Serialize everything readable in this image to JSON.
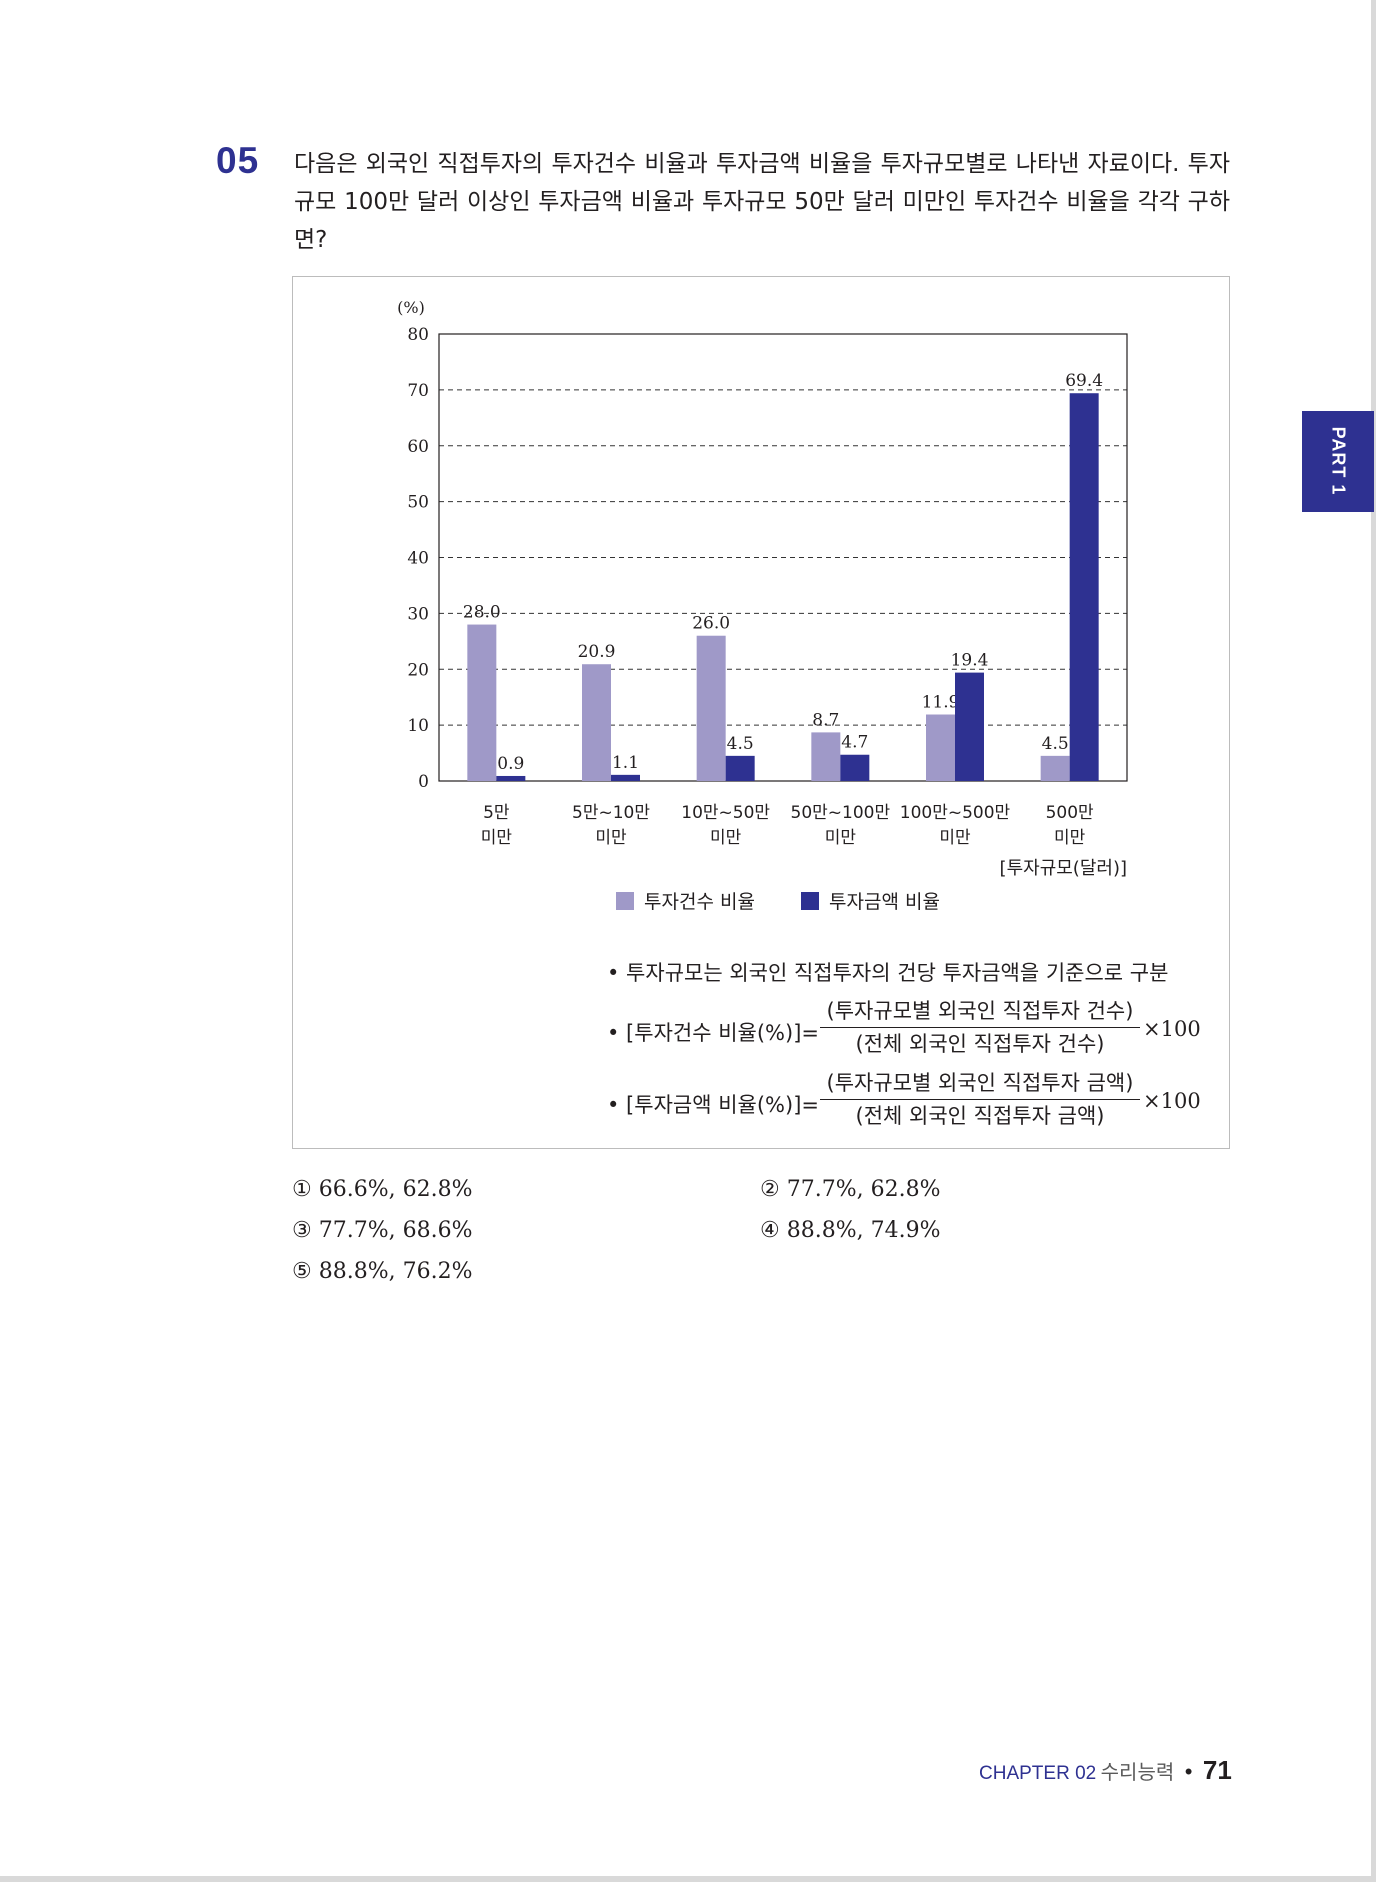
{
  "question": {
    "number": "05",
    "text": "다음은 외국인 직접투자의 투자건수 비율과 투자금액 비율을 투자규모별로 나타낸 자료이다. 투자규모 100만 달러 이상인 투자금액 비율과 투자규모 50만 달러 미만인 투자건수 비율을 각각 구하면?"
  },
  "side_tab": {
    "label": "PART 1"
  },
  "chart_data": {
    "type": "bar",
    "unit_label": "(%)",
    "ylim": [
      0,
      80
    ],
    "yticks": [
      "0",
      "10",
      "20",
      "30",
      "40",
      "50",
      "60",
      "70",
      "80"
    ],
    "grid": "dashed horizontal",
    "categories": [
      [
        "5만",
        "미만"
      ],
      [
        "5만~10만",
        "미만"
      ],
      [
        "10만~50만",
        "미만"
      ],
      [
        "50만~100만",
        "미만"
      ],
      [
        "100만~500만",
        "미만"
      ],
      [
        "500만",
        "미만"
      ]
    ],
    "xlabel": "[투자규모(달러)]",
    "series": [
      {
        "name": "투자건수 비율",
        "color": "#9f99c8",
        "values": [
          28.0,
          20.9,
          26.0,
          8.7,
          11.9,
          4.5
        ],
        "labels": [
          "28.0",
          "20.9",
          "26.0",
          "8.7",
          "11.9",
          "4.5"
        ]
      },
      {
        "name": "투자금액 비율",
        "color": "#2e3191",
        "values": [
          0.9,
          1.1,
          4.5,
          4.7,
          19.4,
          69.4
        ],
        "labels": [
          "0.9",
          "1.1",
          "4.5",
          "4.7",
          "19.4",
          "69.4"
        ]
      }
    ],
    "legend": "bottom-center"
  },
  "notes": {
    "bullet1": "• 투자규모는 외국인 직접투자의 건당 투자금액을 기준으로 구분",
    "formula1": {
      "lhs": "• [투자건수 비율(%)]=",
      "numerator": "(투자규모별 외국인 직접투자 건수)",
      "denominator": "(전체 외국인 직접투자 건수)",
      "multiplier": "×100"
    },
    "formula2": {
      "lhs": "• [투자금액 비율(%)]=",
      "numerator": "(투자규모별 외국인 직접투자 금액)",
      "denominator": "(전체 외국인 직접투자 금액)",
      "multiplier": "×100"
    }
  },
  "choices": [
    "① 66.6%, 62.8%",
    "② 77.7%, 62.8%",
    "③ 77.7%, 68.6%",
    "④ 88.8%, 74.9%",
    "⑤ 88.8%, 76.2%"
  ],
  "footer": {
    "chapter": "CHAPTER 02",
    "subject": "수리능력",
    "separator": "•",
    "page": "71"
  }
}
